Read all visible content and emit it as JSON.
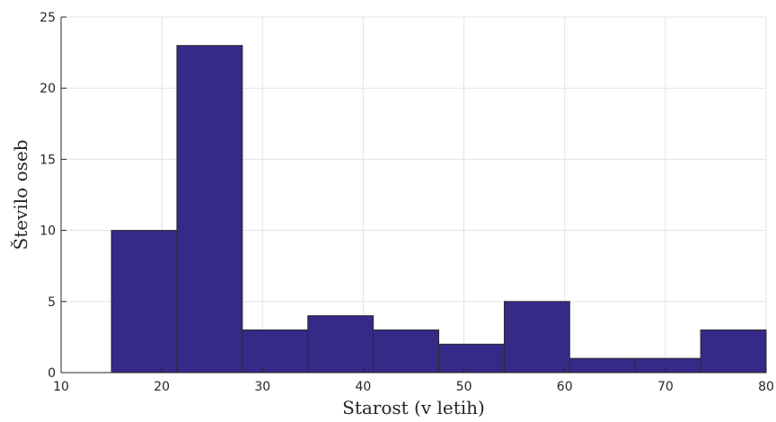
{
  "chart_data": {
    "type": "bar",
    "title": "",
    "xlabel": "Starost (v letih)",
    "ylabel": "Število oseb",
    "xlim": [
      10,
      80
    ],
    "ylim": [
      0,
      25
    ],
    "grid": true,
    "xticks": [
      "10",
      "20",
      "30",
      "40",
      "50",
      "60",
      "70",
      "80"
    ],
    "yticks": [
      "0",
      "5",
      "10",
      "15",
      "20",
      "25"
    ],
    "bins": [
      {
        "from": 15,
        "to": 21.5,
        "value": 10
      },
      {
        "from": 21.5,
        "to": 28,
        "value": 23
      },
      {
        "from": 28,
        "to": 34.5,
        "value": 3
      },
      {
        "from": 34.5,
        "to": 41,
        "value": 4
      },
      {
        "from": 41,
        "to": 47.5,
        "value": 3
      },
      {
        "from": 47.5,
        "to": 54,
        "value": 2
      },
      {
        "from": 54,
        "to": 60.5,
        "value": 5
      },
      {
        "from": 60.5,
        "to": 67,
        "value": 1
      },
      {
        "from": 67,
        "to": 73.5,
        "value": 1
      },
      {
        "from": 73.5,
        "to": 80,
        "value": 3
      }
    ],
    "colors": {
      "bar_fill": "#352a87",
      "bar_edge": "#2b2b2b",
      "grid": "#e3e3e3",
      "axis": "#262626"
    }
  }
}
